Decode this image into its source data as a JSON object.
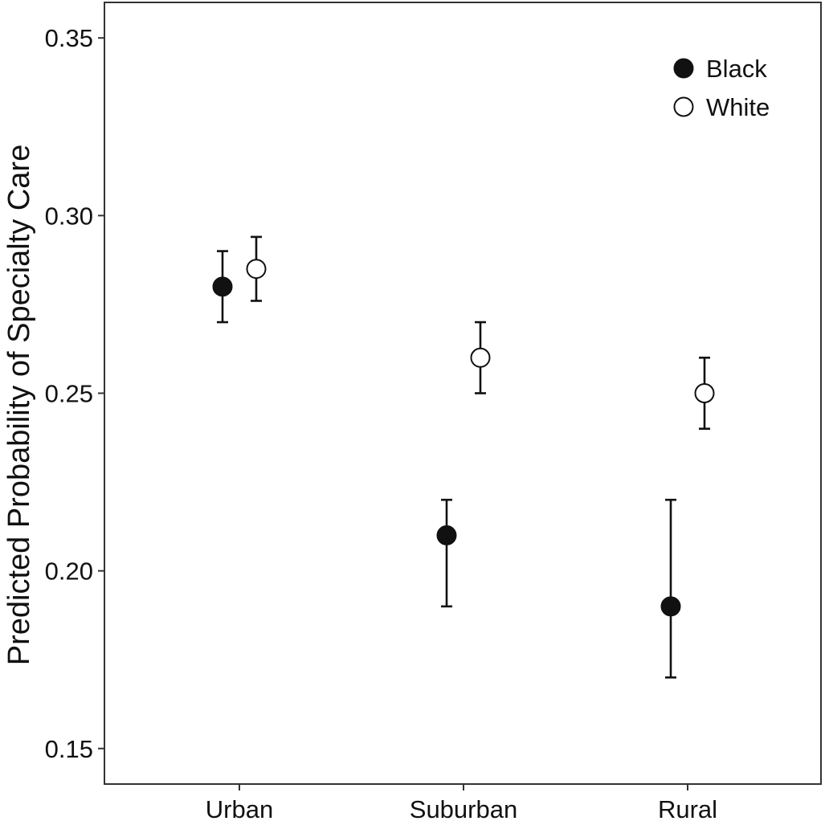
{
  "chart_data": {
    "type": "scatter",
    "title": "",
    "xlabel": "",
    "ylabel": "Predicted Probability of Specialty Care",
    "categories": [
      "Urban",
      "Suburban",
      "Rural"
    ],
    "ylim": [
      0.14,
      0.36
    ],
    "yticks": [
      0.15,
      0.2,
      0.25,
      0.3,
      0.35
    ],
    "ytick_labels": [
      "0.15",
      "0.20",
      "0.25",
      "0.30",
      "0.35"
    ],
    "grid": false,
    "legend_position": "top-right",
    "series": [
      {
        "name": "Black",
        "color": "#111111",
        "fill": "#111111",
        "values": [
          0.28,
          0.21,
          0.19
        ],
        "lower": [
          0.27,
          0.19,
          0.17
        ],
        "upper": [
          0.29,
          0.22,
          0.22
        ]
      },
      {
        "name": "White",
        "color": "#111111",
        "fill": "#ffffff",
        "values": [
          0.285,
          0.26,
          0.25
        ],
        "lower": [
          0.276,
          0.25,
          0.24
        ],
        "upper": [
          0.294,
          0.27,
          0.26
        ]
      }
    ]
  }
}
